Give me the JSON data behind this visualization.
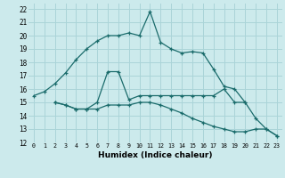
{
  "xlabel": "Humidex (Indice chaleur)",
  "bg_color": "#cceaec",
  "grid_color": "#aad4d8",
  "line_color": "#1a6b6b",
  "xlim": [
    -0.5,
    23.5
  ],
  "ylim": [
    12,
    22.4
  ],
  "xticks": [
    0,
    1,
    2,
    3,
    4,
    5,
    6,
    7,
    8,
    9,
    10,
    11,
    12,
    13,
    14,
    15,
    16,
    17,
    18,
    19,
    20,
    21,
    22,
    23
  ],
  "yticks": [
    12,
    13,
    14,
    15,
    16,
    17,
    18,
    19,
    20,
    21,
    22
  ],
  "series1_x": [
    0,
    1,
    2,
    3,
    4,
    5,
    6,
    7,
    8,
    9,
    10,
    11,
    12,
    13,
    14,
    15,
    16,
    17,
    18,
    19,
    20,
    21,
    22,
    23
  ],
  "series1_y": [
    15.5,
    15.8,
    16.4,
    17.2,
    18.2,
    19.0,
    19.6,
    20.0,
    20.0,
    20.2,
    20.0,
    21.8,
    19.5,
    19.0,
    18.7,
    18.8,
    18.7,
    17.5,
    16.2,
    16.0,
    15.0,
    13.8,
    13.0,
    12.5
  ],
  "series2_x": [
    2,
    3,
    4,
    5,
    6,
    7,
    8,
    9,
    10,
    11,
    12,
    13,
    14,
    15,
    16,
    17,
    18,
    19,
    20
  ],
  "series2_y": [
    15.0,
    14.8,
    14.5,
    14.5,
    15.0,
    17.3,
    17.3,
    15.2,
    15.5,
    15.5,
    15.5,
    15.5,
    15.5,
    15.5,
    15.5,
    15.5,
    16.0,
    15.0,
    15.0
  ],
  "series3_x": [
    2,
    3,
    4,
    5,
    6,
    7,
    8,
    9,
    10,
    11,
    12,
    13,
    14,
    15,
    16,
    17,
    18,
    19,
    20,
    21,
    22,
    23
  ],
  "series3_y": [
    15.0,
    14.8,
    14.5,
    14.5,
    14.5,
    14.8,
    14.8,
    14.8,
    15.0,
    15.0,
    14.8,
    14.5,
    14.2,
    13.8,
    13.5,
    13.2,
    13.0,
    12.8,
    12.8,
    13.0,
    13.0,
    12.5
  ]
}
